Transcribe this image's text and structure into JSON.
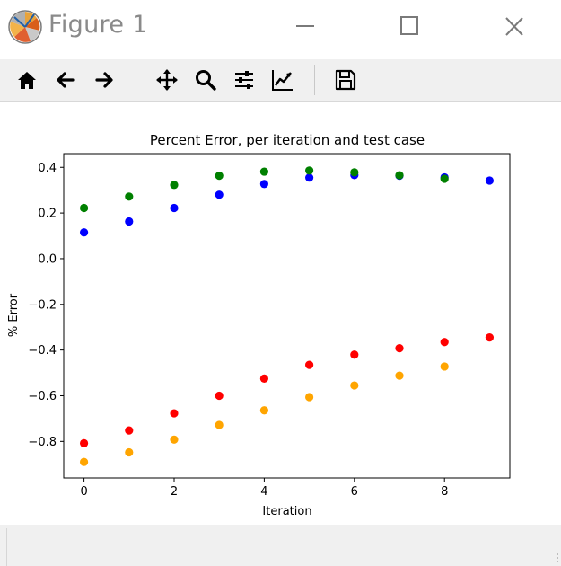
{
  "window": {
    "title": "Figure 1",
    "icons": [
      "matplotlib-logo-icon",
      "minimize-icon",
      "maximize-icon",
      "close-icon"
    ]
  },
  "toolbar": {
    "buttons": [
      "home-icon",
      "back-arrow-icon",
      "forward-arrow-icon",
      "pan-move-icon",
      "zoom-magnifier-icon",
      "configure-subplots-icon",
      "edit-axes-icon",
      "save-disk-icon"
    ]
  },
  "chart_data": {
    "type": "scatter",
    "title": "Percent Error, per iteration and test case",
    "xlabel": "Iteration",
    "ylabel": "% Error",
    "xlim": [
      -0.45,
      9.45
    ],
    "ylim": [
      -0.96,
      0.46
    ],
    "x_ticks": [
      0,
      2,
      4,
      6,
      8
    ],
    "y_ticks": [
      0.4,
      0.2,
      0.0,
      -0.2,
      -0.4,
      -0.6,
      -0.8
    ],
    "y_tick_labels": [
      "0.4",
      "0.2",
      "0.0",
      "−0.2",
      "−0.4",
      "−0.6",
      "−0.8"
    ],
    "grid": false,
    "legend": "none",
    "x": [
      0,
      1,
      2,
      3,
      4,
      5,
      6,
      7,
      8,
      9
    ],
    "series": [
      {
        "color": "#0000ff",
        "values": [
          0.115,
          0.163,
          0.222,
          0.28,
          0.327,
          0.355,
          0.366,
          0.363,
          0.356,
          0.342
        ]
      },
      {
        "color": "#008000",
        "values": [
          0.222,
          0.272,
          0.323,
          0.363,
          0.381,
          0.386,
          0.378,
          0.365,
          0.35,
          null
        ]
      },
      {
        "color": "#ff0000",
        "values": [
          -0.808,
          -0.752,
          -0.677,
          -0.6,
          -0.525,
          -0.465,
          -0.42,
          -0.392,
          -0.365,
          -0.345
        ]
      },
      {
        "color": "#ffa500",
        "values": [
          -0.89,
          -0.848,
          -0.792,
          -0.728,
          -0.664,
          -0.606,
          -0.555,
          -0.512,
          -0.472,
          null
        ]
      }
    ]
  }
}
